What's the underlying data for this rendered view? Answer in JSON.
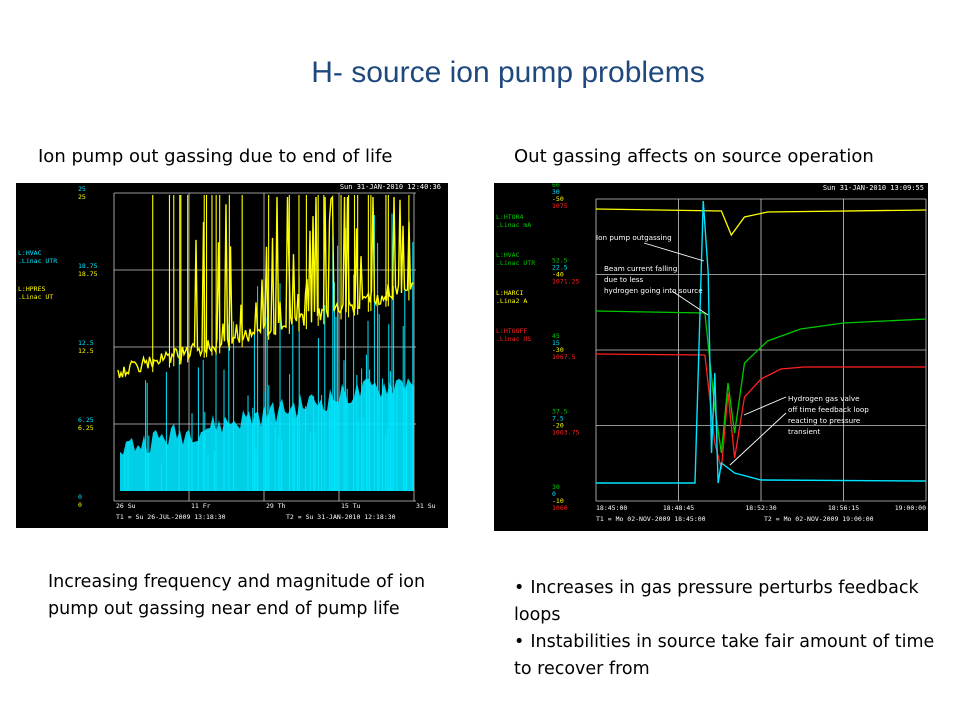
{
  "title": "H- source ion pump problems",
  "left_heading": "Ion pump out gassing due to end of life",
  "right_heading": "Out gassing affects on source operation",
  "left_caption": "Increasing frequency and magnitude of ion pump out gassing near end of pump life",
  "bullets": [
    "Increases in gas pressure perturbs feedback loops",
    "Instabilities in source take fair amount of time to recover from"
  ],
  "colors": {
    "title": "#1f497d",
    "scope_bg": "#000000",
    "yellow": "#ffff00",
    "cyan": "#00e5ff",
    "green": "#00c800",
    "red": "#ff2020",
    "white": "#ffffff",
    "grid": "#c8c8c8"
  },
  "chart_data": [
    {
      "type": "line",
      "timestamp": "Sun 31-JAN-2010 12:40:36",
      "series": [
        {
          "name": "L:HVAC .Linac UTR",
          "color": "#00e5ff"
        },
        {
          "name": "L:HPRES .Linac UT",
          "color": "#ffff00"
        }
      ],
      "channel_labels": [
        {
          "line1": "L:HVAC",
          "line2": ".Linac  UTR",
          "color": "#00e5ff"
        },
        {
          "line1": "L:HPRES",
          "line2": ".Linac  UT",
          "color": "#ffff00"
        }
      ],
      "y_ticks": [
        {
          "values": [
            "25",
            "25"
          ],
          "level": 4
        },
        {
          "values": [
            "18.75",
            "18.75"
          ],
          "level": 3
        },
        {
          "values": [
            "12.5",
            "12.5"
          ],
          "level": 2
        },
        {
          "values": [
            "6.25",
            "6.25"
          ],
          "level": 1
        },
        {
          "values": [
            "0",
            "0"
          ],
          "level": 0
        }
      ],
      "ylim": [
        0,
        25
      ],
      "x_ticks": [
        "26 Su",
        "11 Fr",
        "29 Th",
        "15 Tu",
        "31 Su"
      ],
      "t1": "T1 = Su 26-JUL-2009 13:18:30",
      "t2": "T2 = Su 31-JAN-2010 12:18:30",
      "grid": true
    },
    {
      "type": "line",
      "timestamp": "Sun 31-JAN-2010 13:09:55",
      "series": [
        {
          "name": "L:HTOR4 .Linac mA",
          "color": "#ffff00"
        },
        {
          "name": "L:HVAC .Linac UTR",
          "color": "#00e5ff"
        },
        {
          "name": "L:HARCI .Lina2 A",
          "color": "#00c800"
        },
        {
          "name": "L:HTGOFF .Linac US",
          "color": "#ff2020"
        }
      ],
      "channel_labels": [
        {
          "line1": "L:HTOR4",
          "line2": ".Linac  mA",
          "color": "#00c800"
        },
        {
          "line1": "L:HVAC",
          "line2": ".Linac  UTR",
          "color": "#00c800"
        },
        {
          "line1": "L:HARCI",
          "line2": ".Lina2  A",
          "color": "#ffff00"
        },
        {
          "line1": "L:HTGOFF",
          "line2": ".Linac  US",
          "color": "#ff2020"
        }
      ],
      "y_tick_groups": [
        {
          "values": [
            "60",
            "30",
            "-50",
            "1075"
          ],
          "level": 4
        },
        {
          "values": [
            "52.5",
            "22.5",
            "-40",
            "1071.25"
          ],
          "level": 3
        },
        {
          "values": [
            "45",
            "15",
            "-30",
            "1067.5"
          ],
          "level": 2
        },
        {
          "values": [
            "37.5",
            "7.5",
            "-20",
            "1063.75"
          ],
          "level": 1
        },
        {
          "values": [
            "30",
            "0",
            "-10",
            "1060"
          ],
          "level": 0
        }
      ],
      "x_ticks": [
        "18:45:00",
        "18:48:45",
        "18:52:30",
        "18:56:15",
        "19:00:00"
      ],
      "t1": "T1 = Mo 02-NOV-2009 18:45:00",
      "t2": "T2 = Mo 02-NOV-2009 19:00:00",
      "annotations": [
        "Ion pump outgassing",
        "Beam current falling due to less hydrogen going into source",
        "Hydrogen gas valve off time feedback loop reacting to pressure transient"
      ],
      "grid": true
    }
  ]
}
